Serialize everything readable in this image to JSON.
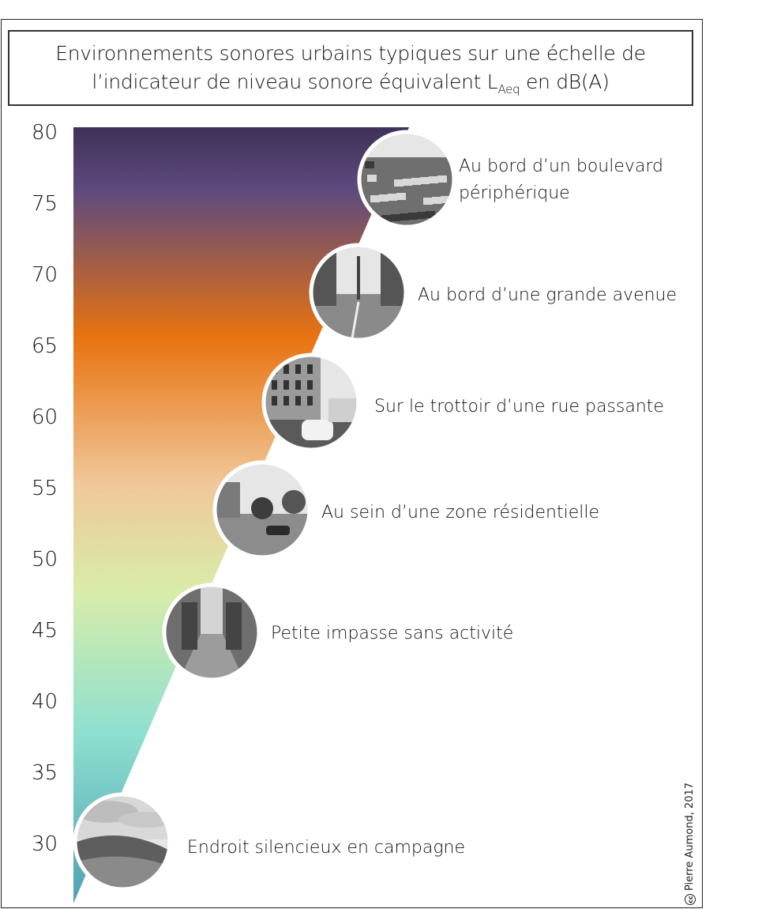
{
  "title": {
    "line1": "Environnements sonores urbains typiques sur une échelle de",
    "line2_pre": "l’indicateur de niveau sonore équivalent L",
    "line2_sub": "Aeq",
    "line2_post": " en dB(A)"
  },
  "scale": {
    "ticks": [
      "80",
      "75",
      "70",
      "65",
      "60",
      "55",
      "50",
      "45",
      "40",
      "35",
      "30"
    ],
    "range": [
      25,
      80
    ],
    "gradient_colors": [
      "#3f3157",
      "#5c4a7e",
      "#e8720f",
      "#f0c89a",
      "#d8ecaa",
      "#8ee0d0",
      "#4fa0b4"
    ]
  },
  "environments": [
    {
      "label": "Au bord d’un boulevard périphérique",
      "line1": "Au bord d’un boulevard",
      "line2": "périphérique",
      "level": 76,
      "icon": "highway-traffic-photo"
    },
    {
      "label": "Au bord d’une grande avenue",
      "level": 71,
      "icon": "avenue-photo"
    },
    {
      "label": "Sur le trottoir d’une rue passante",
      "level": 63,
      "icon": "busy-street-photo"
    },
    {
      "label": "Au sein d’une zone résidentielle",
      "level": 56,
      "icon": "residential-area-photo"
    },
    {
      "label": "Petite impasse sans activité",
      "level": 47,
      "icon": "quiet-alley-photo"
    },
    {
      "label": "Endroit silencieux en campagne",
      "level": 30,
      "icon": "countryside-photo"
    }
  ],
  "credit": {
    "symbol": "cc",
    "text": "Pierre Aumond, 2017"
  }
}
